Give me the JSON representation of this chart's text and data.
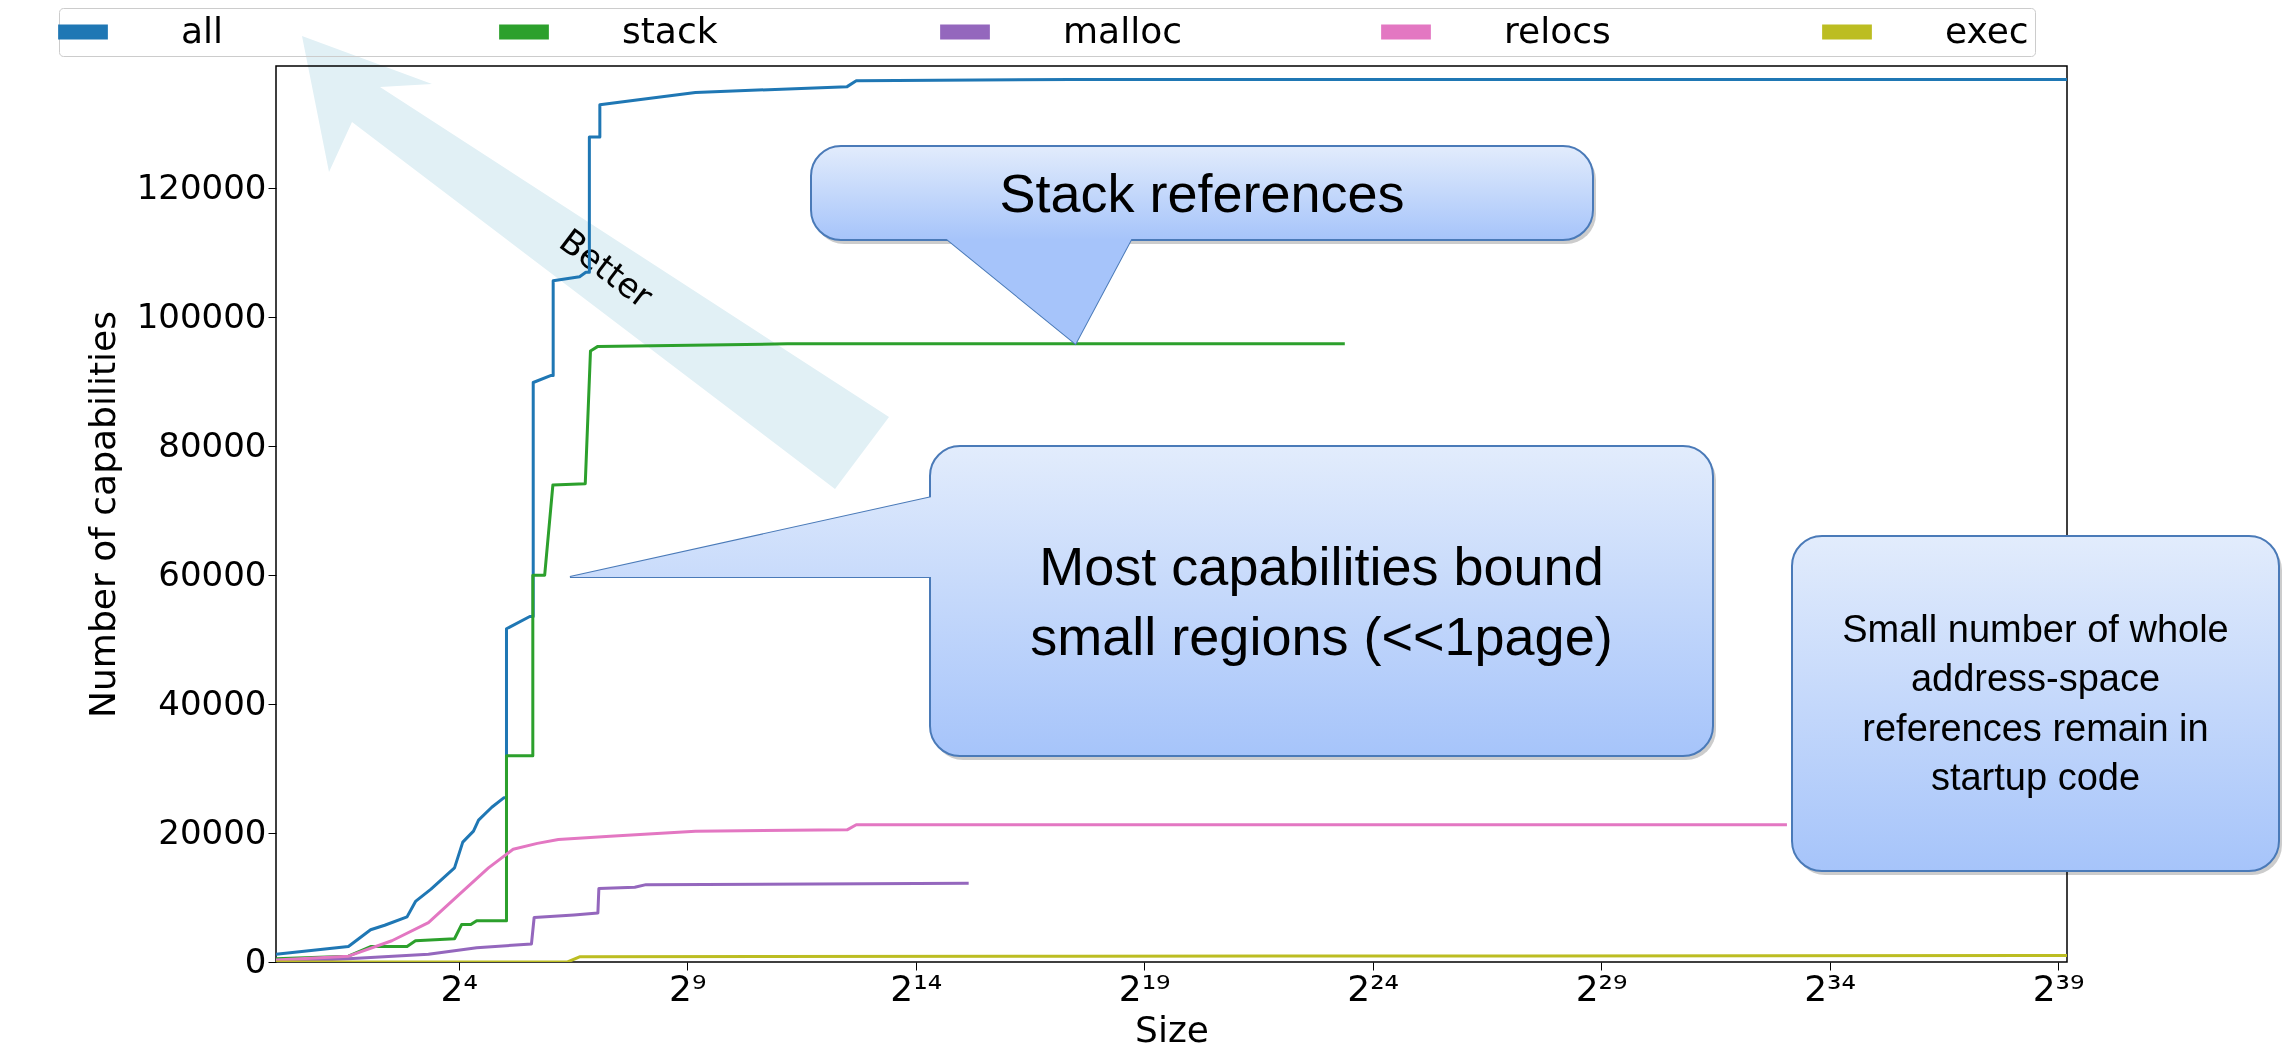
{
  "chart_data": {
    "type": "line",
    "xlabel": "Size",
    "ylabel": "Number of capabilities",
    "log": "x",
    "grid": false,
    "legend": "top",
    "xlim": [
      1,
      630000000000
    ],
    "ylim": [
      0,
      139000
    ],
    "xticks": [
      {
        "value": 16,
        "label": "2⁴"
      },
      {
        "value": 512,
        "label": "2⁹"
      },
      {
        "value": 16384,
        "label": "2¹⁴"
      },
      {
        "value": 524288,
        "label": "2¹⁹"
      },
      {
        "value": 16777216,
        "label": "2²⁴"
      },
      {
        "value": 536870912,
        "label": "2²⁹"
      },
      {
        "value": 17179869184,
        "label": "2³⁴"
      },
      {
        "value": 549755813888,
        "label": "2³⁹"
      }
    ],
    "yticks": [
      0,
      20000,
      40000,
      60000,
      80000,
      100000,
      120000
    ],
    "series": [
      {
        "name": "all",
        "color": "#1f77b4",
        "x": [
          1,
          3,
          4.2,
          5.2,
          7.3,
          8.3,
          10.5,
          15,
          17,
          20,
          21.6,
          26.4,
          31.8,
          33,
          33,
          47,
          49.5,
          49.5,
          65,
          67,
          67,
          100,
          110,
          116,
          116,
          132,
          136,
          136,
          231,
          580,
          5790,
          6650,
          172900,
          630000000000
        ],
        "values": [
          1200,
          2400,
          5000,
          5700,
          7000,
          9400,
          11300,
          14600,
          18600,
          20300,
          22000,
          24000,
          25500,
          25500,
          51700,
          53600,
          53600,
          89900,
          91000,
          91000,
          105700,
          106300,
          107000,
          107000,
          128000,
          128000,
          128000,
          133000,
          133700,
          134900,
          135800,
          136700,
          136900,
          136900
        ]
      },
      {
        "name": "stack",
        "color": "#2ca02c",
        "x": [
          1,
          3,
          4.2,
          7.3,
          8.3,
          15,
          16.7,
          19.2,
          21,
          28.8,
          33,
          33,
          46.5,
          49.2,
          49.2,
          58.9,
          66.7,
          109,
          118,
          132,
          2350,
          11000000
        ],
        "values": [
          500,
          900,
          2400,
          2400,
          3300,
          3600,
          5800,
          5800,
          6400,
          6400,
          6400,
          32000,
          32000,
          32000,
          60000,
          60000,
          74000,
          74200,
          94800,
          95500,
          95900,
          95900
        ]
      },
      {
        "name": "malloc",
        "color": "#9467bd",
        "x": [
          1,
          3,
          10.1,
          21,
          48.2,
          50.2,
          91.8,
          132,
          134,
          231,
          274,
          36600
        ],
        "values": [
          0,
          500,
          1200,
          2200,
          2800,
          6900,
          7300,
          7600,
          11400,
          11600,
          12000,
          12200
        ]
      },
      {
        "name": "relocs",
        "color": "#e377c2",
        "x": [
          1,
          3,
          5.8,
          10.1,
          16,
          25.1,
          36.5,
          52.7,
          72.5,
          159,
          580,
          5790,
          6650,
          9000000000
        ],
        "values": [
          300,
          900,
          3300,
          6100,
          10400,
          14600,
          17500,
          18400,
          19000,
          19500,
          20300,
          20500,
          21300,
          21300
        ]
      },
      {
        "name": "exec",
        "color": "#bcbd22",
        "x": [
          1,
          83.3,
          100,
          172900,
          630000000000
        ],
        "values": [
          0,
          0,
          800,
          900,
          1000
        ]
      }
    ],
    "annotations": [
      "Better",
      {
        "text": "Stack references",
        "x": 185000,
        "y": 95900
      },
      "Most capabilities bound small regions (<<1page)",
      "Small number of whole address-space references remain in startup code"
    ]
  }
}
